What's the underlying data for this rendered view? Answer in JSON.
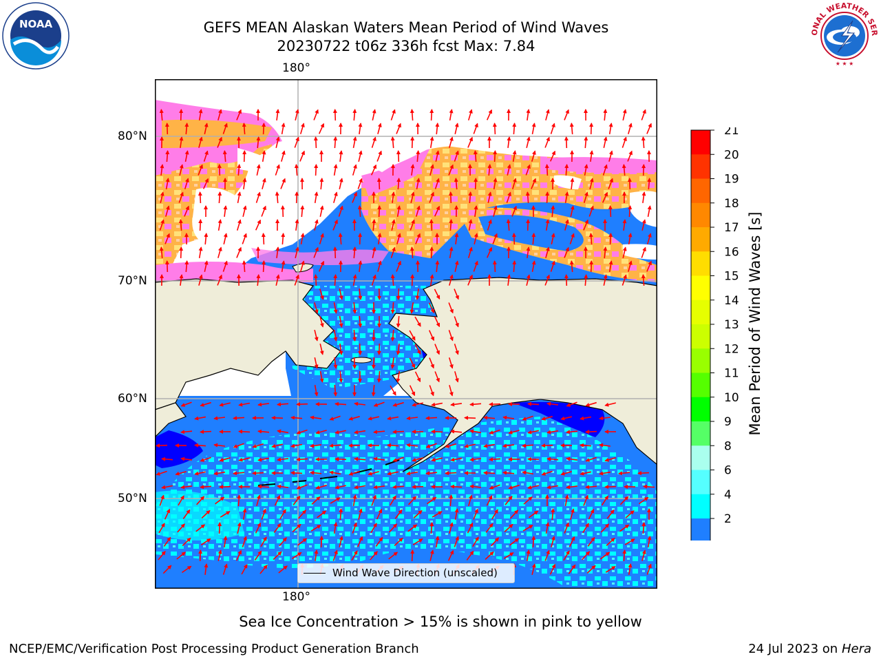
{
  "title": {
    "line1": "GEFS MEAN Alaskan Waters Mean Period of Wind Waves",
    "line2": "20230722 t06z 336h fcst   Max: 7.84"
  },
  "map": {
    "lon_label_top": "180°",
    "lon_label_bottom": "180°",
    "lat_labels": [
      "80°N",
      "70°N",
      "60°N",
      "50°N"
    ],
    "legend_label": "Wind Wave Direction (unscaled)",
    "colors": {
      "land": "#efedd9",
      "ocean_2_4": "#1f7fff",
      "ocean_4_6": "#00ffff",
      "ocean_6_8": "#4dfffb",
      "ice_pink": "#ff7de8",
      "ice_orange": "#ffb347",
      "ice_yellow": "#ffe27a",
      "arrows": "#ff0000",
      "grid": "#b0b0b0"
    }
  },
  "colorbar": {
    "label": "Mean Period of Wind Waves [s]",
    "ticks": [
      "21",
      "20",
      "19",
      "18",
      "17",
      "16",
      "15",
      "14",
      "13",
      "12",
      "11",
      "10",
      "9",
      "8",
      "6",
      "4",
      "2"
    ],
    "colors": [
      "#ff0000",
      "#ff3300",
      "#ff6600",
      "#ff8800",
      "#ffaa00",
      "#ffdd00",
      "#ffff00",
      "#e6ff00",
      "#ccff00",
      "#99ff00",
      "#55ff00",
      "#00ff00",
      "#55ff66",
      "#aaffee",
      "#55ffff",
      "#00ffff",
      "#1f7fff"
    ],
    "under_color": "#0000ff"
  },
  "notes": {
    "sea_ice": "Sea Ice Concentration > 15% is shown in pink to yellow"
  },
  "footer": {
    "left": "NCEP/EMC/Verification Post Processing Product Generation Branch",
    "date": "24 Jul 2023 on ",
    "host": "Hera"
  },
  "logos": {
    "noaa_text": "NOAA",
    "nws_text": "NATIONAL WEATHER SERVICE"
  }
}
